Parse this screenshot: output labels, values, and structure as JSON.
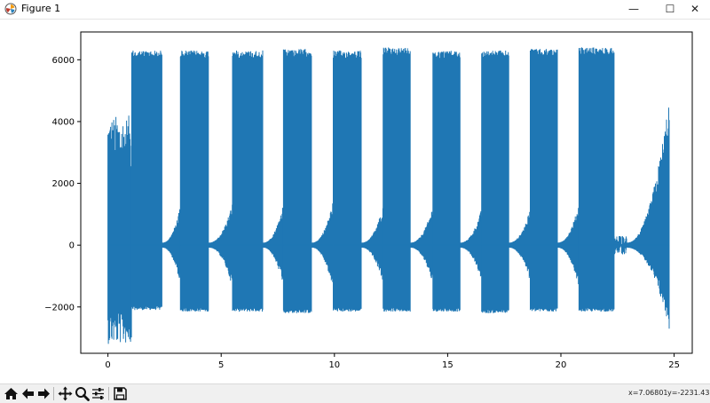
{
  "window": {
    "title": "Figure 1",
    "minimize_glyph": "—",
    "maximize_glyph": "☐",
    "close_glyph": "✕",
    "app_icon": "matplotlib-logo-icon"
  },
  "toolbar": {
    "icons": [
      "home-icon",
      "back-arrow-icon",
      "forward-arrow-icon",
      "pan-icon",
      "zoom-icon",
      "subplots-config-icon",
      "save-icon"
    ],
    "x_readout": "x=7.06801",
    "y_readout": "y=-2231.43"
  },
  "chart_data": {
    "type": "line",
    "color": "#1f77b4",
    "title": "",
    "xlabel": "",
    "ylabel": "",
    "xlim": [
      -1.2,
      25.8
    ],
    "ylim": [
      -3500,
      6900
    ],
    "xticks": [
      0,
      5,
      10,
      15,
      20,
      25
    ],
    "yticks": [
      -2000,
      0,
      2000,
      4000,
      6000
    ],
    "xtick_labels": [
      "0",
      "5",
      "10",
      "15",
      "20",
      "25"
    ],
    "ytick_labels": [
      "−2000",
      "0",
      "2000",
      "4000",
      "6000"
    ],
    "grid": false,
    "x_range": [
      0,
      24.8
    ],
    "bursts": [
      {
        "x_start": 0.0,
        "x_end": 1.05,
        "y_max": 4200,
        "y_min": -2700,
        "kind": "noisy"
      },
      {
        "x_start": 1.05,
        "x_end": 2.4,
        "y_max": 6300,
        "y_min": -2100,
        "kind": "block"
      },
      {
        "x_start": 2.4,
        "x_end": 3.2,
        "y_max": 1200,
        "y_min": -1200,
        "kind": "grow"
      },
      {
        "x_start": 3.2,
        "x_end": 4.45,
        "y_max": 6300,
        "y_min": -2150,
        "kind": "block"
      },
      {
        "x_start": 4.45,
        "x_end": 5.5,
        "y_max": 1300,
        "y_min": -1300,
        "kind": "grow"
      },
      {
        "x_start": 5.5,
        "x_end": 6.85,
        "y_max": 6300,
        "y_min": -2150,
        "kind": "block"
      },
      {
        "x_start": 6.85,
        "x_end": 7.75,
        "y_max": 1300,
        "y_min": -1300,
        "kind": "grow"
      },
      {
        "x_start": 7.75,
        "x_end": 9.0,
        "y_max": 6350,
        "y_min": -2200,
        "kind": "block"
      },
      {
        "x_start": 9.0,
        "x_end": 9.95,
        "y_max": 1400,
        "y_min": -1400,
        "kind": "grow"
      },
      {
        "x_start": 9.95,
        "x_end": 11.2,
        "y_max": 6300,
        "y_min": -2150,
        "kind": "block"
      },
      {
        "x_start": 11.2,
        "x_end": 12.15,
        "y_max": 1200,
        "y_min": -1200,
        "kind": "grow"
      },
      {
        "x_start": 12.15,
        "x_end": 13.35,
        "y_max": 6400,
        "y_min": -2150,
        "kind": "block"
      },
      {
        "x_start": 13.35,
        "x_end": 14.35,
        "y_max": 1200,
        "y_min": -1200,
        "kind": "grow"
      },
      {
        "x_start": 14.35,
        "x_end": 15.55,
        "y_max": 6300,
        "y_min": -2150,
        "kind": "block"
      },
      {
        "x_start": 15.55,
        "x_end": 16.5,
        "y_max": 1100,
        "y_min": -1100,
        "kind": "grow"
      },
      {
        "x_start": 16.5,
        "x_end": 17.7,
        "y_max": 6300,
        "y_min": -2200,
        "kind": "block"
      },
      {
        "x_start": 17.7,
        "x_end": 18.65,
        "y_max": 1100,
        "y_min": -1100,
        "kind": "grow"
      },
      {
        "x_start": 18.65,
        "x_end": 19.85,
        "y_max": 6350,
        "y_min": -2150,
        "kind": "block"
      },
      {
        "x_start": 19.85,
        "x_end": 20.8,
        "y_max": 1300,
        "y_min": -1300,
        "kind": "grow"
      },
      {
        "x_start": 20.8,
        "x_end": 22.35,
        "y_max": 6400,
        "y_min": -2150,
        "kind": "block"
      },
      {
        "x_start": 22.35,
        "x_end": 22.9,
        "y_max": 300,
        "y_min": -300,
        "kind": "gap"
      },
      {
        "x_start": 22.9,
        "x_end": 24.8,
        "y_max": 4850,
        "y_min": -2700,
        "kind": "grow"
      }
    ]
  }
}
